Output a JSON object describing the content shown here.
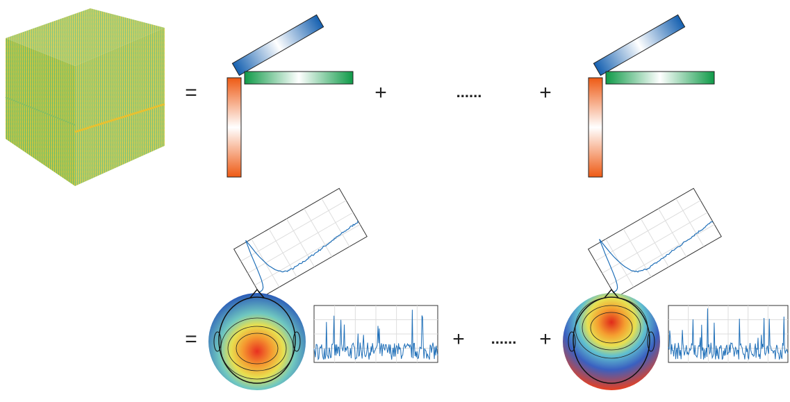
{
  "rows": [
    {
      "symbols": [
        "=",
        "+",
        "......",
        "+"
      ]
    },
    {
      "symbols": [
        "=",
        "+",
        "......",
        "+"
      ]
    }
  ]
}
